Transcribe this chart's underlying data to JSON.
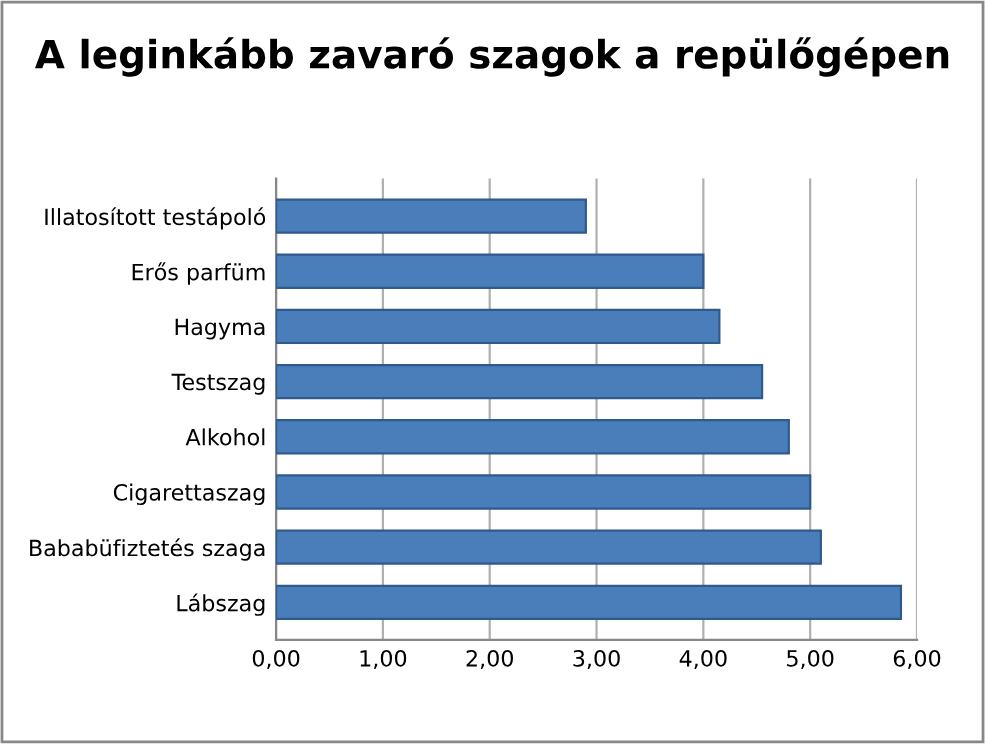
{
  "chart_data": {
    "type": "bar",
    "orientation": "horizontal",
    "title": "A leginkább zavaró szagok a repülőgépen",
    "categories": [
      "Illatosított testápoló",
      "Erős parfüm",
      "Hagyma",
      "Testszag",
      "Alkohol",
      "Cigarettaszag",
      "Bababüfiztetés szaga",
      "Lábszag"
    ],
    "values": [
      2.9,
      4.0,
      4.15,
      4.55,
      4.8,
      5.0,
      5.1,
      5.85
    ],
    "color": "#4a7ebb",
    "xlim": [
      0,
      6
    ],
    "xticks": [
      {
        "value": 0,
        "label": "0,00"
      },
      {
        "value": 1,
        "label": "1,00"
      },
      {
        "value": 2,
        "label": "2,00"
      },
      {
        "value": 3,
        "label": "3,00"
      },
      {
        "value": 4,
        "label": "4,00"
      },
      {
        "value": 5,
        "label": "5,00"
      },
      {
        "value": 6,
        "label": "6,00"
      }
    ],
    "grid": "x",
    "legend": false
  }
}
